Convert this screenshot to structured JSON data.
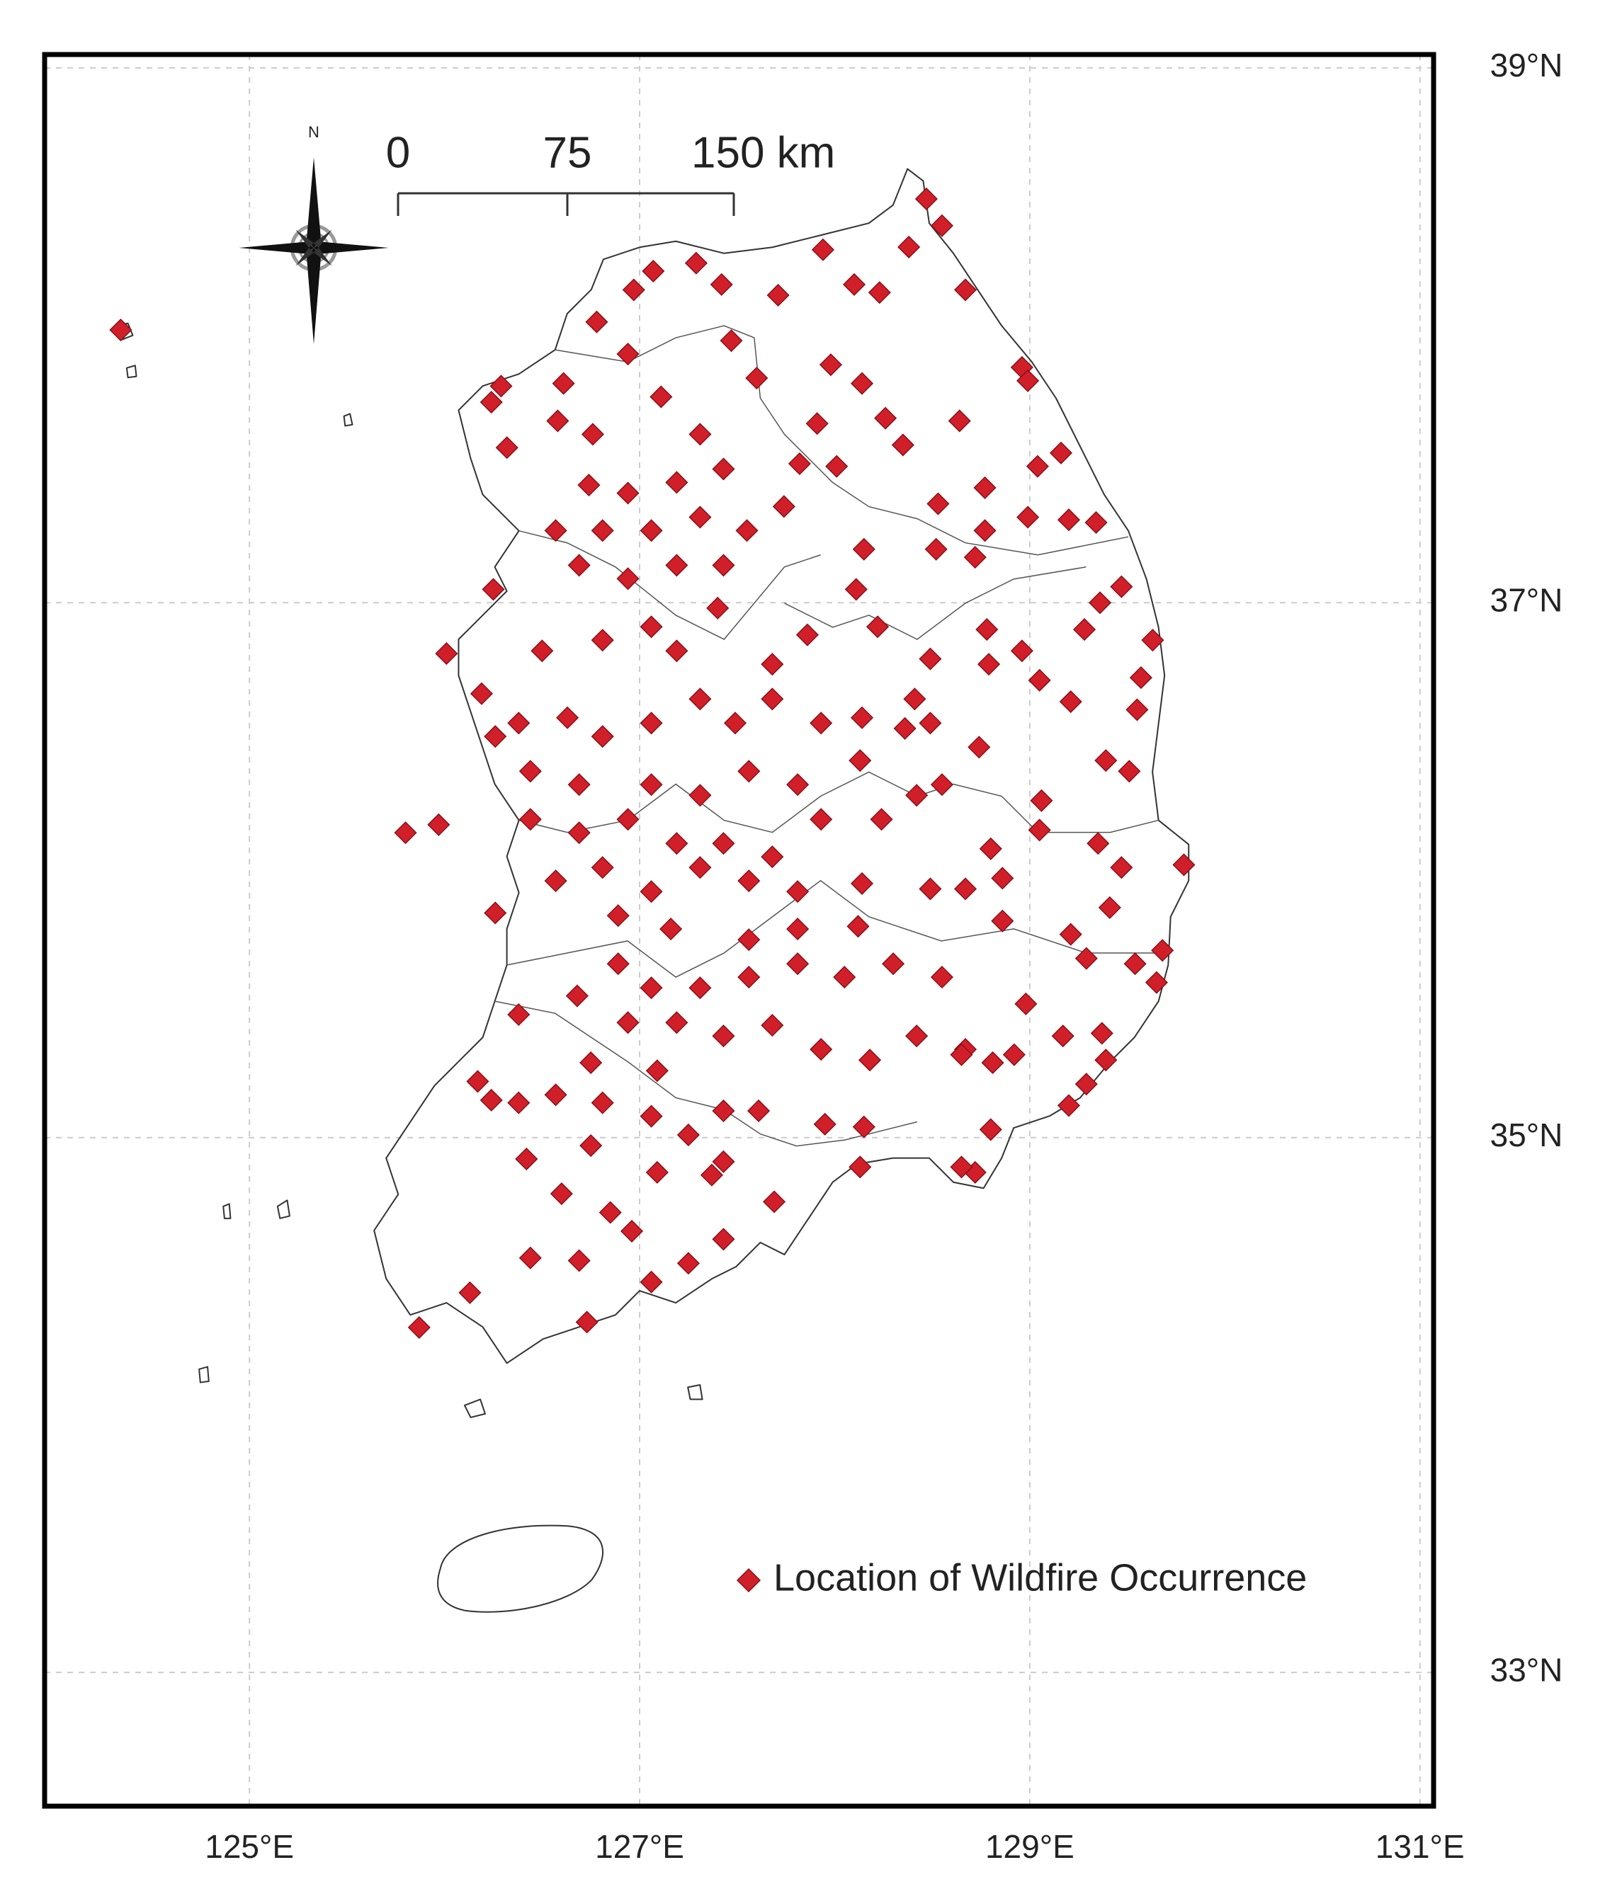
{
  "map": {
    "xlim": [
      123.95,
      131.07
    ],
    "ylim": [
      32.5,
      39.05
    ],
    "xticks": [
      {
        "value": 125,
        "label": "125°E"
      },
      {
        "value": 127,
        "label": "127°E"
      },
      {
        "value": 129,
        "label": "129°E"
      },
      {
        "value": 131,
        "label": "131°E"
      }
    ],
    "yticks": [
      {
        "value": 33,
        "label": "33°N"
      },
      {
        "value": 35,
        "label": "35°N"
      },
      {
        "value": 37,
        "label": "37°N"
      },
      {
        "value": 39,
        "label": "39°N"
      }
    ],
    "grid": true,
    "marker_color": "#d11f2a",
    "north_label": "N",
    "scale_bar": {
      "labels": [
        "0",
        "75",
        "150 km"
      ]
    },
    "legend": {
      "label": "Location of Wildfire Occurrence",
      "position": "bottom-right"
    },
    "points": {
      "lon": [
        124.34,
        128.47,
        128.55,
        128.38,
        127.94,
        128.67,
        128.1,
        128.23,
        127.71,
        127.29,
        126.97,
        126.78,
        127.07,
        127.42,
        127.98,
        128.14,
        128.96,
        128.99,
        128.64,
        128.26,
        127.91,
        128.35,
        129.16,
        129.04,
        128.77,
        128.53,
        129.2,
        129.34,
        128.99,
        128.77,
        128.01,
        127.82,
        127.6,
        127.47,
        126.94,
        126.61,
        126.29,
        126.24,
        126.32,
        126.58,
        126.76,
        127.11,
        127.31,
        127.43,
        127.19,
        126.94,
        126.74,
        126.57,
        126.81,
        127.06,
        127.31,
        127.55,
        127.74,
        127.43,
        127.19,
        126.94,
        126.69,
        128.15,
        128.52,
        128.72,
        129.47,
        129.36,
        129.28,
        129.63,
        128.78,
        128.96,
        128.79,
        128.49,
        128.22,
        128.11,
        127.86,
        127.68,
        127.4,
        127.19,
        127.06,
        126.81,
        126.5,
        126.25,
        126.01,
        126.19,
        126.38,
        126.63,
        126.81,
        127.06,
        127.31,
        127.49,
        127.68,
        127.93,
        128.14,
        128.36,
        128.49,
        128.41,
        129.05,
        129.21,
        129.57,
        129.55,
        129.39,
        129.51,
        128.74,
        128.55,
        128.13,
        127.81,
        127.56,
        127.31,
        127.06,
        126.69,
        126.44,
        126.26,
        125.8,
        125.97,
        126.44,
        126.69,
        126.94,
        127.19,
        127.43,
        127.68,
        127.93,
        128.24,
        128.42,
        128.8,
        129.05,
        129.06,
        129.35,
        129.47,
        129.79,
        128.86,
        128.67,
        128.49,
        128.14,
        127.81,
        127.56,
        127.31,
        127.06,
        126.81,
        126.57,
        126.26,
        126.89,
        127.16,
        127.56,
        127.81,
        128.12,
        128.86,
        129.21,
        129.41,
        129.68,
        129.54,
        129.65,
        129.29,
        128.98,
        128.55,
        128.3,
        128.05,
        127.81,
        127.56,
        127.31,
        127.06,
        126.89,
        126.68,
        126.38,
        126.94,
        127.19,
        127.43,
        127.68,
        127.93,
        128.18,
        128.42,
        128.67,
        128.92,
        129.17,
        129.37,
        129.39,
        129.29,
        129.2,
        128.81,
        128.65,
        128.8,
        128.72,
        128.65,
        128.15,
        127.95,
        128.13,
        127.69,
        127.43,
        127.37,
        127.43,
        127.25,
        127.06,
        126.73,
        126.69,
        126.44,
        126.13,
        125.87,
        126.6,
        126.85,
        126.96,
        127.09,
        126.75,
        126.42,
        126.38,
        126.24,
        126.17,
        126.57,
        126.81,
        127.06,
        127.25,
        127.61,
        127.43,
        126.75,
        127.09
      ],
      "lat": [
        38.02,
        38.51,
        38.41,
        38.33,
        38.32,
        38.17,
        38.19,
        38.16,
        38.15,
        38.27,
        38.17,
        38.05,
        38.24,
        38.19,
        37.89,
        37.82,
        37.88,
        37.83,
        37.68,
        37.69,
        37.67,
        37.59,
        37.56,
        37.51,
        37.43,
        37.37,
        37.31,
        37.3,
        37.32,
        37.27,
        37.51,
        37.52,
        37.84,
        37.98,
        37.93,
        37.82,
        37.81,
        37.75,
        37.58,
        37.68,
        37.63,
        37.77,
        37.63,
        37.5,
        37.45,
        37.41,
        37.44,
        37.27,
        37.27,
        37.27,
        37.32,
        37.27,
        37.36,
        37.14,
        37.14,
        37.09,
        37.14,
        37.2,
        37.2,
        37.17,
        37.06,
        37.0,
        36.9,
        36.86,
        36.9,
        36.82,
        36.77,
        36.79,
        36.91,
        37.05,
        36.88,
        36.77,
        36.98,
        36.82,
        36.91,
        36.86,
        36.82,
        37.05,
        36.81,
        36.66,
        36.55,
        36.57,
        36.5,
        36.55,
        36.64,
        36.55,
        36.64,
        36.55,
        36.57,
        36.53,
        36.55,
        36.64,
        36.71,
        36.63,
        36.72,
        36.6,
        36.41,
        36.37,
        36.46,
        36.32,
        36.41,
        36.32,
        36.37,
        36.28,
        36.32,
        36.32,
        36.37,
        36.5,
        36.14,
        36.17,
        36.19,
        36.14,
        36.19,
        36.1,
        36.1,
        36.05,
        36.19,
        36.19,
        36.28,
        36.08,
        36.15,
        36.26,
        36.1,
        36.01,
        36.02,
        35.97,
        35.93,
        35.93,
        35.95,
        35.92,
        35.96,
        36.01,
        35.92,
        36.01,
        35.96,
        35.84,
        35.83,
        35.78,
        35.74,
        35.78,
        35.79,
        35.81,
        35.76,
        35.86,
        35.7,
        35.65,
        35.58,
        35.67,
        35.5,
        35.6,
        35.65,
        35.6,
        35.65,
        35.6,
        35.56,
        35.56,
        35.65,
        35.53,
        35.46,
        35.43,
        35.43,
        35.38,
        35.42,
        35.33,
        35.29,
        35.38,
        35.33,
        35.31,
        35.38,
        35.39,
        35.29,
        35.2,
        35.12,
        35.28,
        35.31,
        35.03,
        34.87,
        34.89,
        35.04,
        35.05,
        34.89,
        34.76,
        34.91,
        34.86,
        34.62,
        34.53,
        34.46,
        34.31,
        34.54,
        34.55,
        34.42,
        34.29,
        34.79,
        34.72,
        34.65,
        34.87,
        34.97,
        34.92,
        35.13,
        35.14,
        35.21,
        35.16,
        35.13,
        35.08,
        35.01,
        35.1,
        35.1,
        35.28,
        35.25
      ]
    }
  }
}
